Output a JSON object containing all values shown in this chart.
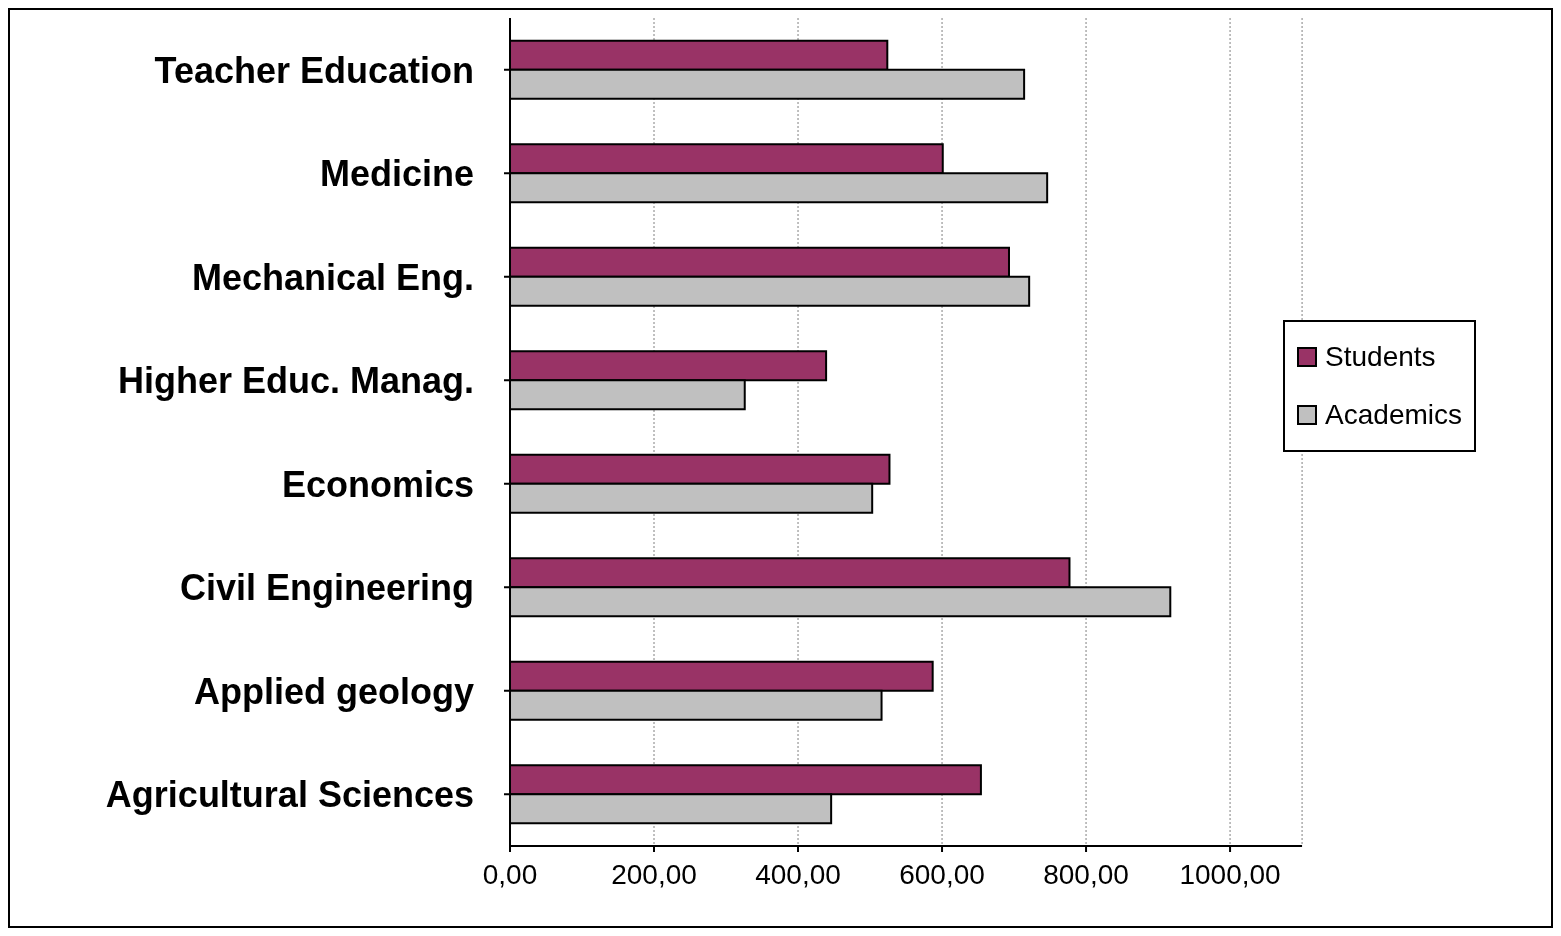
{
  "chart_data": {
    "type": "bar",
    "orientation": "horizontal",
    "categories": [
      "Teacher Education",
      "Medicine",
      "Mechanical Eng.",
      "Higher Educ. Manag.",
      "Economics",
      "Civil Engineering",
      "Applied geology",
      "Agricultural Sciences"
    ],
    "series": [
      {
        "name": "Students",
        "color": "#993366",
        "values": [
          524,
          601,
          693,
          439,
          527,
          777,
          587,
          654
        ]
      },
      {
        "name": "Academics",
        "color": "#c0c0c0",
        "values": [
          714,
          746,
          721,
          326,
          503,
          917,
          516,
          446
        ]
      }
    ],
    "xlim": [
      0,
      1100
    ],
    "xticks": [
      {
        "value": 0,
        "label": "0,00"
      },
      {
        "value": 200,
        "label": "200,00"
      },
      {
        "value": 400,
        "label": "400,00"
      },
      {
        "value": 600,
        "label": "600,00"
      },
      {
        "value": 800,
        "label": "800,00"
      },
      {
        "value": 1000,
        "label": "1000,00"
      }
    ],
    "grid": "x",
    "legend": "right"
  }
}
